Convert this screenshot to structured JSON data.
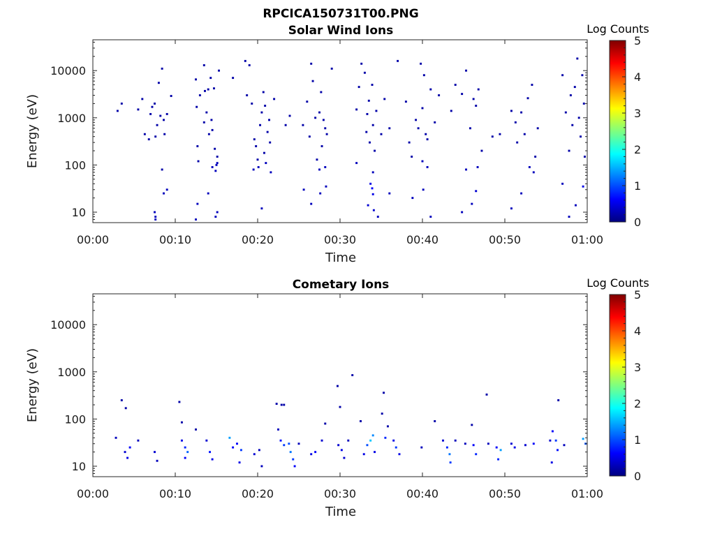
{
  "figure_title": "RPCICA150731T00.PNG",
  "colorbar_title": "Log Counts",
  "colorbar_ticks": [
    "0",
    "1",
    "2",
    "3",
    "4",
    "5"
  ],
  "colormap": [
    "#00007f",
    "#0000ff",
    "#007fff",
    "#00ffff",
    "#7fff7f",
    "#ffff00",
    "#ff7f00",
    "#ff0000",
    "#7f0000"
  ],
  "chart_data": [
    {
      "type": "heatmap",
      "title": "Solar Wind Ions",
      "xlabel": "Time",
      "ylabel": "Energy (eV)",
      "xlim_minutes": [
        0,
        60
      ],
      "ylim": [
        6,
        45000
      ],
      "yscale": "log",
      "xticks": [
        "00:00",
        "00:10",
        "00:20",
        "00:30",
        "00:40",
        "00:50",
        "01:00"
      ],
      "yticks": [
        {
          "value": 10,
          "label": "10"
        },
        {
          "value": 100,
          "label": "100"
        },
        {
          "value": 1000,
          "label": "1000"
        },
        {
          "value": 10000,
          "label": "10000"
        }
      ],
      "clim": [
        0,
        5
      ],
      "points": [
        [
          3,
          1400,
          0.2
        ],
        [
          3.5,
          2000,
          0.2
        ],
        [
          5.5,
          1500,
          0.2
        ],
        [
          6,
          2500,
          0.2
        ],
        [
          6.3,
          450,
          0.2
        ],
        [
          6.8,
          350,
          0.2
        ],
        [
          7,
          1200,
          0.2
        ],
        [
          7.2,
          1700,
          0.2
        ],
        [
          7.5,
          2000,
          0.2
        ],
        [
          7.6,
          400,
          0.2
        ],
        [
          7.8,
          700,
          0.2
        ],
        [
          8,
          5500,
          0.2
        ],
        [
          8.2,
          1100,
          0.2
        ],
        [
          8.4,
          11000,
          0.2
        ],
        [
          8.6,
          900,
          0.2
        ],
        [
          8.7,
          450,
          0.2
        ],
        [
          9,
          1200,
          0.2
        ],
        [
          9.5,
          2900,
          0.2
        ],
        [
          8.4,
          80,
          0.2
        ],
        [
          8.6,
          25,
          0.3
        ],
        [
          9,
          30,
          0.3
        ],
        [
          7.6,
          8,
          0.3
        ],
        [
          7.6,
          7,
          0.3
        ],
        [
          7.5,
          10,
          0.3
        ],
        [
          12.5,
          6500,
          0.2
        ],
        [
          12.6,
          1700,
          0.2
        ],
        [
          12.7,
          250,
          0.2
        ],
        [
          12.8,
          120,
          0.2
        ],
        [
          13,
          3000,
          0.2
        ],
        [
          13.5,
          800,
          0.2
        ],
        [
          13.5,
          13000,
          0.2
        ],
        [
          13.6,
          3700,
          0.2
        ],
        [
          13.8,
          1300,
          0.2
        ],
        [
          14,
          4000,
          0.2
        ],
        [
          14.1,
          450,
          0.2
        ],
        [
          14.3,
          7000,
          0.2
        ],
        [
          14.4,
          900,
          0.2
        ],
        [
          14.5,
          550,
          0.2
        ],
        [
          14.7,
          4200,
          0.2
        ],
        [
          14.8,
          220,
          0.2
        ],
        [
          15.1,
          150,
          0.2
        ],
        [
          15.3,
          10000,
          0.2
        ],
        [
          14.5,
          90,
          0.3
        ],
        [
          14.9,
          75,
          0.3
        ],
        [
          15.1,
          110,
          0.3
        ],
        [
          15,
          100,
          0.3
        ],
        [
          14,
          25,
          0.3
        ],
        [
          12.5,
          7,
          0.3
        ],
        [
          12.7,
          15,
          0.3
        ],
        [
          14.9,
          8,
          0.3
        ],
        [
          15.1,
          10,
          0.3
        ],
        [
          17,
          7000,
          0.2
        ],
        [
          18.5,
          16000,
          0.2
        ],
        [
          19,
          13000,
          0.2
        ],
        [
          18.7,
          3000,
          0.2
        ],
        [
          19.3,
          2000,
          0.2
        ],
        [
          19.6,
          350,
          0.2
        ],
        [
          19.8,
          250,
          0.2
        ],
        [
          20,
          130,
          0.2
        ],
        [
          20.3,
          700,
          0.2
        ],
        [
          20.5,
          1300,
          0.2
        ],
        [
          20.7,
          3500,
          0.2
        ],
        [
          20.9,
          1800,
          0.2
        ],
        [
          21.2,
          500,
          0.2
        ],
        [
          21.4,
          900,
          0.2
        ],
        [
          22,
          2500,
          0.2
        ],
        [
          21.5,
          300,
          0.2
        ],
        [
          20.8,
          180,
          0.2
        ],
        [
          19.5,
          80,
          0.3
        ],
        [
          20.1,
          90,
          0.3
        ],
        [
          21,
          110,
          0.3
        ],
        [
          21.6,
          70,
          0.3
        ],
        [
          20.5,
          12,
          0.3
        ],
        [
          23.4,
          700,
          0.2
        ],
        [
          23.9,
          1100,
          0.2
        ],
        [
          25.5,
          700,
          0.2
        ],
        [
          26,
          2200,
          0.2
        ],
        [
          26.3,
          400,
          0.2
        ],
        [
          26.5,
          14000,
          0.2
        ],
        [
          26.7,
          6000,
          0.2
        ],
        [
          27,
          1000,
          0.2
        ],
        [
          27.2,
          130,
          0.2
        ],
        [
          27.5,
          1300,
          0.2
        ],
        [
          27.7,
          3500,
          0.2
        ],
        [
          27.8,
          250,
          0.2
        ],
        [
          28,
          900,
          0.2
        ],
        [
          28.2,
          600,
          0.2
        ],
        [
          28.4,
          450,
          0.2
        ],
        [
          29,
          11000,
          0.2
        ],
        [
          27.5,
          80,
          0.3
        ],
        [
          28.2,
          90,
          0.3
        ],
        [
          26.5,
          15,
          0.3
        ],
        [
          27.6,
          25,
          0.3
        ],
        [
          28.3,
          35,
          0.3
        ],
        [
          25.6,
          30,
          0.3
        ],
        [
          32,
          1500,
          0.2
        ],
        [
          32.3,
          4500,
          0.2
        ],
        [
          32.6,
          14000,
          0.2
        ],
        [
          33,
          9000,
          0.2
        ],
        [
          33.2,
          500,
          0.2
        ],
        [
          33.3,
          1200,
          0.2
        ],
        [
          33.5,
          2300,
          0.2
        ],
        [
          33.6,
          300,
          0.2
        ],
        [
          33.9,
          5000,
          0.2
        ],
        [
          34,
          700,
          0.2
        ],
        [
          34.2,
          200,
          0.2
        ],
        [
          34.4,
          1400,
          0.2
        ],
        [
          35,
          450,
          0.2
        ],
        [
          35.4,
          2500,
          0.2
        ],
        [
          36,
          600,
          0.2
        ],
        [
          33.7,
          40,
          0.5
        ],
        [
          33.9,
          32,
          0.6
        ],
        [
          34,
          24,
          0.5
        ],
        [
          33.4,
          14,
          0.4
        ],
        [
          34.1,
          11,
          0.4
        ],
        [
          34.6,
          8,
          0.3
        ],
        [
          32,
          110,
          0.3
        ],
        [
          34,
          70,
          0.3
        ],
        [
          37,
          16000,
          0.2
        ],
        [
          38,
          2200,
          0.2
        ],
        [
          38.4,
          300,
          0.2
        ],
        [
          38.7,
          150,
          0.2
        ],
        [
          39.2,
          900,
          0.2
        ],
        [
          39.5,
          600,
          0.2
        ],
        [
          39.8,
          14000,
          0.2
        ],
        [
          40,
          1600,
          0.2
        ],
        [
          40.2,
          8000,
          0.2
        ],
        [
          40.4,
          450,
          0.2
        ],
        [
          40.6,
          350,
          0.2
        ],
        [
          41,
          4000,
          0.2
        ],
        [
          41.5,
          800,
          0.2
        ],
        [
          40,
          120,
          0.3
        ],
        [
          40.6,
          90,
          0.3
        ],
        [
          40.1,
          30,
          0.3
        ],
        [
          41,
          8,
          0.3
        ],
        [
          38.8,
          20,
          0.3
        ],
        [
          36,
          25,
          0.3
        ],
        [
          42,
          3000,
          0.2
        ],
        [
          43.5,
          1400,
          0.2
        ],
        [
          44,
          5000,
          0.2
        ],
        [
          44.8,
          3200,
          0.2
        ],
        [
          45.3,
          10000,
          0.2
        ],
        [
          45.8,
          600,
          0.2
        ],
        [
          46.2,
          2500,
          0.2
        ],
        [
          46.5,
          1800,
          0.2
        ],
        [
          46.8,
          4000,
          0.2
        ],
        [
          47.2,
          200,
          0.2
        ],
        [
          48.5,
          400,
          0.2
        ],
        [
          49.4,
          450,
          0.2
        ],
        [
          50.8,
          1400,
          0.2
        ],
        [
          51.3,
          800,
          0.2
        ],
        [
          51.5,
          300,
          0.2
        ],
        [
          52,
          1300,
          0.2
        ],
        [
          52.4,
          450,
          0.2
        ],
        [
          52.8,
          2600,
          0.2
        ],
        [
          53.3,
          5000,
          0.2
        ],
        [
          53.7,
          150,
          0.2
        ],
        [
          54,
          600,
          0.2
        ],
        [
          53,
          90,
          0.3
        ],
        [
          53.5,
          70,
          0.3
        ],
        [
          45.3,
          80,
          0.3
        ],
        [
          46.7,
          90,
          0.3
        ],
        [
          46.5,
          28,
          0.4
        ],
        [
          46,
          15,
          0.3
        ],
        [
          44.8,
          10,
          0.3
        ],
        [
          52,
          25,
          0.3
        ],
        [
          50.8,
          12,
          0.3
        ],
        [
          57,
          8000,
          0.2
        ],
        [
          57.4,
          1300,
          0.2
        ],
        [
          57.8,
          200,
          0.2
        ],
        [
          58,
          3000,
          0.2
        ],
        [
          58.2,
          700,
          0.2
        ],
        [
          58.5,
          4500,
          0.2
        ],
        [
          58.8,
          18000,
          0.2
        ],
        [
          59,
          1000,
          0.2
        ],
        [
          59.2,
          400,
          0.2
        ],
        [
          59.4,
          8000,
          0.2
        ],
        [
          59.6,
          2000,
          0.2
        ],
        [
          59.7,
          150,
          0.2
        ],
        [
          59.5,
          35,
          0.5
        ],
        [
          58.6,
          14,
          0.3
        ],
        [
          57.8,
          8,
          0.3
        ],
        [
          57,
          40,
          0.3
        ]
      ]
    },
    {
      "type": "heatmap",
      "title": "Cometary Ions",
      "xlabel": "Time",
      "ylabel": "Energy (eV)",
      "xlim_minutes": [
        0,
        60
      ],
      "ylim": [
        6,
        45000
      ],
      "yscale": "log",
      "xticks": [
        "00:00",
        "00:10",
        "00:20",
        "00:30",
        "00:40",
        "00:50",
        "01:00"
      ],
      "yticks": [
        {
          "value": 10,
          "label": "10"
        },
        {
          "value": 100,
          "label": "100"
        },
        {
          "value": 1000,
          "label": "1000"
        },
        {
          "value": 10000,
          "label": "10000"
        }
      ],
      "clim": [
        0,
        5
      ],
      "points": [
        [
          2.8,
          40,
          0.3
        ],
        [
          3.5,
          250,
          0.2
        ],
        [
          4,
          170,
          0.2
        ],
        [
          3.9,
          20,
          0.4
        ],
        [
          4.2,
          15,
          0.5
        ],
        [
          4.5,
          25,
          0.6
        ],
        [
          5.5,
          35,
          0.3
        ],
        [
          7.5,
          20,
          0.4
        ],
        [
          7.8,
          13,
          0.3
        ],
        [
          10.5,
          230,
          0.2
        ],
        [
          10.8,
          85,
          0.2
        ],
        [
          10.8,
          35,
          0.5
        ],
        [
          11.2,
          25,
          0.8
        ],
        [
          11.5,
          20,
          1.1
        ],
        [
          11.2,
          15,
          0.6
        ],
        [
          12.5,
          60,
          0.2
        ],
        [
          13.8,
          35,
          0.4
        ],
        [
          14.2,
          20,
          0.7
        ],
        [
          14.5,
          14,
          0.5
        ],
        [
          16.6,
          40,
          1.4
        ],
        [
          17,
          25,
          0.6
        ],
        [
          17.5,
          30,
          0.6
        ],
        [
          18,
          22,
          0.9
        ],
        [
          17.8,
          12,
          0.5
        ],
        [
          19.6,
          18,
          0.4
        ],
        [
          20.2,
          22,
          0.3
        ],
        [
          20.5,
          10,
          0.3
        ],
        [
          22.3,
          210,
          0.2
        ],
        [
          22.9,
          200,
          0.2
        ],
        [
          23.2,
          200,
          0.2
        ],
        [
          22.5,
          60,
          0.3
        ],
        [
          22.8,
          35,
          0.7
        ],
        [
          23.2,
          28,
          0.9
        ],
        [
          23.8,
          30,
          1.0
        ],
        [
          24,
          20,
          1.2
        ],
        [
          24.3,
          14,
          0.9
        ],
        [
          24.5,
          10,
          0.6
        ],
        [
          25,
          30,
          0.3
        ],
        [
          26.5,
          18,
          0.5
        ],
        [
          27,
          20,
          0.6
        ],
        [
          27.8,
          35,
          0.4
        ],
        [
          28.2,
          80,
          0.2
        ],
        [
          29.7,
          500,
          0.2
        ],
        [
          30,
          180,
          0.2
        ],
        [
          29.8,
          28,
          0.4
        ],
        [
          30.2,
          22,
          0.5
        ],
        [
          30.5,
          15,
          0.4
        ],
        [
          31.5,
          850,
          0.2
        ],
        [
          31,
          35,
          0.3
        ],
        [
          32.5,
          90,
          0.2
        ],
        [
          32.9,
          18,
          0.5
        ],
        [
          33.3,
          28,
          1.0
        ],
        [
          33.7,
          35,
          1.6
        ],
        [
          34,
          45,
          1.3
        ],
        [
          34.2,
          20,
          0.5
        ],
        [
          35.3,
          360,
          0.2
        ],
        [
          35.1,
          130,
          0.2
        ],
        [
          35.8,
          70,
          0.2
        ],
        [
          35.5,
          40,
          0.8
        ],
        [
          36.5,
          35,
          0.5
        ],
        [
          36.8,
          25,
          0.9
        ],
        [
          37.2,
          18,
          0.5
        ],
        [
          39.9,
          25,
          0.3
        ],
        [
          41.5,
          90,
          0.2
        ],
        [
          42.5,
          35,
          0.4
        ],
        [
          43,
          25,
          0.8
        ],
        [
          43.3,
          18,
          1.2
        ],
        [
          43.4,
          12,
          0.9
        ],
        [
          44,
          35,
          0.3
        ],
        [
          45.2,
          30,
          0.3
        ],
        [
          46,
          75,
          0.2
        ],
        [
          46.2,
          28,
          0.6
        ],
        [
          46.5,
          18,
          0.8
        ],
        [
          47.8,
          330,
          0.2
        ],
        [
          48,
          30,
          0.3
        ],
        [
          49,
          25,
          0.6
        ],
        [
          49.5,
          22,
          1.4
        ],
        [
          49.2,
          14,
          0.8
        ],
        [
          50.8,
          30,
          0.4
        ],
        [
          51.2,
          25,
          0.5
        ],
        [
          52.5,
          28,
          0.4
        ],
        [
          53.5,
          30,
          0.6
        ],
        [
          55.5,
          35,
          0.4
        ],
        [
          55.8,
          55,
          0.6
        ],
        [
          56.2,
          35,
          0.9
        ],
        [
          56.5,
          250,
          0.2
        ],
        [
          56.4,
          22,
          0.7
        ],
        [
          55.7,
          12,
          0.5
        ],
        [
          57.2,
          28,
          0.3
        ],
        [
          59.5,
          38,
          1.4
        ],
        [
          59.8,
          30,
          1.0
        ]
      ]
    }
  ]
}
